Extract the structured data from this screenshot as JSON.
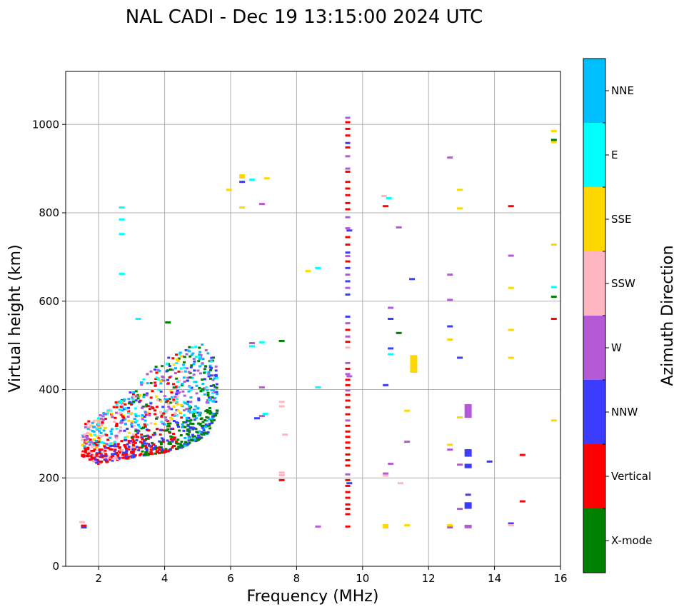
{
  "chart_data": {
    "type": "scatter",
    "title": "NAL CADI - Dec 19 13:15:00 2024 UTC",
    "xlabel": "Frequency (MHz)",
    "ylabel": "Virtual height (km)",
    "xlim": [
      1,
      16
    ],
    "ylim": [
      0,
      1120
    ],
    "xticks": [
      2,
      4,
      6,
      8,
      10,
      12,
      14,
      16
    ],
    "yticks": [
      0,
      200,
      400,
      600,
      800,
      1000
    ],
    "grid": true,
    "colorbar": {
      "label": "Azimuth Direction",
      "categories": [
        {
          "name": "X-mode",
          "color": "#008000"
        },
        {
          "name": "Vertical",
          "color": "#ff0000"
        },
        {
          "name": "NNW",
          "color": "#3c3cff"
        },
        {
          "name": "W",
          "color": "#b45ad7"
        },
        {
          "name": "SSW",
          "color": "#ffb6c1"
        },
        {
          "name": "SSE",
          "color": "#ffd700"
        },
        {
          "name": "E",
          "color": "#00ffff"
        },
        {
          "name": "NNE",
          "color": "#00bfff"
        }
      ]
    },
    "cluster": {
      "description": "dense F-layer trace",
      "x_range": [
        1.5,
        5.6
      ],
      "lower_envelope": [
        [
          1.5,
          250
        ],
        [
          2.0,
          232
        ],
        [
          2.5,
          240
        ],
        [
          3.0,
          245
        ],
        [
          3.5,
          252
        ],
        [
          4.0,
          258
        ],
        [
          4.5,
          268
        ],
        [
          5.0,
          285
        ],
        [
          5.3,
          300
        ],
        [
          5.6,
          345
        ]
      ],
      "upper_envelope": [
        [
          1.5,
          320
        ],
        [
          2.0,
          345
        ],
        [
          2.5,
          370
        ],
        [
          3.0,
          400
        ],
        [
          3.5,
          440
        ],
        [
          4.0,
          470
        ],
        [
          4.5,
          490
        ],
        [
          5.0,
          505
        ],
        [
          5.3,
          500
        ],
        [
          5.6,
          470
        ]
      ]
    },
    "points": [
      {
        "x": 1.5,
        "y": 100,
        "c": "SSW"
      },
      {
        "x": 1.55,
        "y": 92,
        "c": "Vertical"
      },
      {
        "x": 1.55,
        "y": 88,
        "c": "NNW"
      },
      {
        "x": 2.7,
        "y": 812,
        "c": "E"
      },
      {
        "x": 2.7,
        "y": 785,
        "c": "E"
      },
      {
        "x": 2.7,
        "y": 752,
        "c": "E"
      },
      {
        "x": 2.7,
        "y": 662,
        "c": "E"
      },
      {
        "x": 3.2,
        "y": 560,
        "c": "E"
      },
      {
        "x": 4.1,
        "y": 552,
        "c": "X-mode"
      },
      {
        "x": 6.35,
        "y": 885,
        "c": "SSE"
      },
      {
        "x": 6.35,
        "y": 880,
        "c": "SSE"
      },
      {
        "x": 6.35,
        "y": 870,
        "c": "NNW"
      },
      {
        "x": 6.35,
        "y": 812,
        "c": "SSE"
      },
      {
        "x": 6.65,
        "y": 875,
        "c": "E"
      },
      {
        "x": 7.1,
        "y": 878,
        "c": "SSE"
      },
      {
        "x": 6.95,
        "y": 820,
        "c": "W"
      },
      {
        "x": 5.95,
        "y": 852,
        "c": "SSE"
      },
      {
        "x": 6.65,
        "y": 505,
        "c": "W"
      },
      {
        "x": 6.65,
        "y": 498,
        "c": "E"
      },
      {
        "x": 6.95,
        "y": 507,
        "c": "E"
      },
      {
        "x": 7.55,
        "y": 510,
        "c": "X-mode"
      },
      {
        "x": 6.95,
        "y": 405,
        "c": "W"
      },
      {
        "x": 6.8,
        "y": 335,
        "c": "NNW"
      },
      {
        "x": 6.95,
        "y": 340,
        "c": "W"
      },
      {
        "x": 7.05,
        "y": 345,
        "c": "E"
      },
      {
        "x": 7.55,
        "y": 372,
        "c": "SSW"
      },
      {
        "x": 7.55,
        "y": 362,
        "c": "SSW"
      },
      {
        "x": 7.65,
        "y": 298,
        "c": "SSW"
      },
      {
        "x": 7.55,
        "y": 212,
        "c": "SSW"
      },
      {
        "x": 7.55,
        "y": 206,
        "c": "SSW"
      },
      {
        "x": 7.55,
        "y": 195,
        "c": "Vertical"
      },
      {
        "x": 8.35,
        "y": 668,
        "c": "SSE"
      },
      {
        "x": 8.65,
        "y": 675,
        "c": "E"
      },
      {
        "x": 8.65,
        "y": 405,
        "c": "E"
      },
      {
        "x": 8.65,
        "y": 90,
        "c": "W"
      },
      {
        "x": 9.6,
        "y": 760,
        "c": "NNW"
      },
      {
        "x": 9.6,
        "y": 430,
        "c": "W"
      },
      {
        "x": 9.6,
        "y": 188,
        "c": "NNW"
      },
      {
        "x": 10.65,
        "y": 838,
        "c": "SSW"
      },
      {
        "x": 10.8,
        "y": 833,
        "c": "E"
      },
      {
        "x": 10.7,
        "y": 815,
        "c": "Vertical"
      },
      {
        "x": 11.1,
        "y": 767,
        "c": "W"
      },
      {
        "x": 11.5,
        "y": 650,
        "c": "NNW"
      },
      {
        "x": 10.85,
        "y": 585,
        "c": "W"
      },
      {
        "x": 10.85,
        "y": 560,
        "c": "NNW"
      },
      {
        "x": 11.1,
        "y": 528,
        "c": "X-mode"
      },
      {
        "x": 10.85,
        "y": 493,
        "c": "NNW"
      },
      {
        "x": 10.85,
        "y": 480,
        "c": "E"
      },
      {
        "x": 10.7,
        "y": 410,
        "c": "NNW"
      },
      {
        "x": 11.35,
        "y": 352,
        "c": "SSE"
      },
      {
        "x": 11.35,
        "y": 282,
        "c": "W"
      },
      {
        "x": 10.85,
        "y": 232,
        "c": "W"
      },
      {
        "x": 10.7,
        "y": 210,
        "c": "W"
      },
      {
        "x": 10.7,
        "y": 205,
        "c": "SSW"
      },
      {
        "x": 11.15,
        "y": 188,
        "c": "SSW"
      },
      {
        "x": 10.7,
        "y": 93,
        "c": "SSE"
      },
      {
        "x": 10.7,
        "y": 88,
        "c": "SSE"
      },
      {
        "x": 11.35,
        "y": 93,
        "c": "SSE"
      },
      {
        "x": 12.65,
        "y": 925,
        "c": "W"
      },
      {
        "x": 12.95,
        "y": 852,
        "c": "SSE"
      },
      {
        "x": 12.95,
        "y": 810,
        "c": "SSE"
      },
      {
        "x": 12.65,
        "y": 660,
        "c": "W"
      },
      {
        "x": 12.65,
        "y": 603,
        "c": "W"
      },
      {
        "x": 12.65,
        "y": 543,
        "c": "NNW"
      },
      {
        "x": 12.65,
        "y": 513,
        "c": "SSE"
      },
      {
        "x": 12.95,
        "y": 472,
        "c": "NNW"
      },
      {
        "x": 12.95,
        "y": 337,
        "c": "SSE"
      },
      {
        "x": 12.65,
        "y": 275,
        "c": "SSE"
      },
      {
        "x": 12.65,
        "y": 264,
        "c": "W"
      },
      {
        "x": 12.95,
        "y": 230,
        "c": "W"
      },
      {
        "x": 13.85,
        "y": 237,
        "c": "NNW"
      },
      {
        "x": 13.2,
        "y": 162,
        "c": "NNW"
      },
      {
        "x": 12.95,
        "y": 130,
        "c": "W"
      },
      {
        "x": 12.65,
        "y": 93,
        "c": "SSE"
      },
      {
        "x": 12.65,
        "y": 88,
        "c": "W"
      },
      {
        "x": 14.5,
        "y": 815,
        "c": "Vertical"
      },
      {
        "x": 14.5,
        "y": 703,
        "c": "W"
      },
      {
        "x": 14.5,
        "y": 630,
        "c": "SSE"
      },
      {
        "x": 14.5,
        "y": 535,
        "c": "SSE"
      },
      {
        "x": 14.5,
        "y": 472,
        "c": "SSE"
      },
      {
        "x": 14.85,
        "y": 252,
        "c": "Vertical"
      },
      {
        "x": 14.85,
        "y": 147,
        "c": "Vertical"
      },
      {
        "x": 14.5,
        "y": 97,
        "c": "NNW"
      },
      {
        "x": 14.5,
        "y": 93,
        "c": "SSW"
      },
      {
        "x": 15.8,
        "y": 985,
        "c": "SSE"
      },
      {
        "x": 15.8,
        "y": 965,
        "c": "X-mode"
      },
      {
        "x": 15.8,
        "y": 960,
        "c": "SSE"
      },
      {
        "x": 15.8,
        "y": 728,
        "c": "SSE"
      },
      {
        "x": 15.8,
        "y": 632,
        "c": "E"
      },
      {
        "x": 15.8,
        "y": 610,
        "c": "X-mode"
      },
      {
        "x": 15.8,
        "y": 560,
        "c": "Vertical"
      },
      {
        "x": 15.8,
        "y": 330,
        "c": "SSE"
      }
    ],
    "blocks": [
      {
        "x": 11.55,
        "y0": 438,
        "y1": 478,
        "c": "SSE"
      },
      {
        "x": 13.2,
        "y0": 336,
        "y1": 367,
        "c": "W"
      },
      {
        "x": 13.2,
        "y0": 248,
        "y1": 265,
        "c": "NNW"
      },
      {
        "x": 13.2,
        "y0": 222,
        "y1": 232,
        "c": "NNW"
      },
      {
        "x": 13.2,
        "y0": 130,
        "y1": 145,
        "c": "NNW"
      },
      {
        "x": 13.2,
        "y0": 86,
        "y1": 94,
        "c": "W"
      }
    ],
    "column": {
      "x": 9.55,
      "points": [
        {
          "y": 1015,
          "c": "W"
        },
        {
          "y": 1005,
          "c": "Vertical"
        },
        {
          "y": 990,
          "c": "Vertical"
        },
        {
          "y": 975,
          "c": "Vertical"
        },
        {
          "y": 958,
          "c": "NNW"
        },
        {
          "y": 948,
          "c": "Vertical"
        },
        {
          "y": 928,
          "c": "W"
        },
        {
          "y": 900,
          "c": "W"
        },
        {
          "y": 893,
          "c": "Vertical"
        },
        {
          "y": 870,
          "c": "Vertical"
        },
        {
          "y": 855,
          "c": "Vertical"
        },
        {
          "y": 840,
          "c": "Vertical"
        },
        {
          "y": 822,
          "c": "Vertical"
        },
        {
          "y": 808,
          "c": "Vertical"
        },
        {
          "y": 790,
          "c": "W"
        },
        {
          "y": 765,
          "c": "W"
        },
        {
          "y": 745,
          "c": "Vertical"
        },
        {
          "y": 728,
          "c": "Vertical"
        },
        {
          "y": 710,
          "c": "NNW"
        },
        {
          "y": 702,
          "c": "W"
        },
        {
          "y": 690,
          "c": "Vertical"
        },
        {
          "y": 675,
          "c": "NNW"
        },
        {
          "y": 660,
          "c": "W"
        },
        {
          "y": 645,
          "c": "NNW"
        },
        {
          "y": 630,
          "c": "W"
        },
        {
          "y": 615,
          "c": "NNW"
        },
        {
          "y": 565,
          "c": "NNW"
        },
        {
          "y": 550,
          "c": "W"
        },
        {
          "y": 535,
          "c": "Vertical"
        },
        {
          "y": 520,
          "c": "W"
        },
        {
          "y": 508,
          "c": "Vertical"
        },
        {
          "y": 495,
          "c": "SSW"
        },
        {
          "y": 460,
          "c": "W"
        },
        {
          "y": 447,
          "c": "Vertical"
        },
        {
          "y": 435,
          "c": "W"
        },
        {
          "y": 422,
          "c": "Vertical"
        },
        {
          "y": 410,
          "c": "Vertical"
        },
        {
          "y": 398,
          "c": "W"
        },
        {
          "y": 388,
          "c": "Vertical"
        },
        {
          "y": 375,
          "c": "Vertical"
        },
        {
          "y": 360,
          "c": "Vertical"
        },
        {
          "y": 344,
          "c": "Vertical"
        },
        {
          "y": 330,
          "c": "W"
        },
        {
          "y": 318,
          "c": "Vertical"
        },
        {
          "y": 305,
          "c": "Vertical"
        },
        {
          "y": 293,
          "c": "Vertical"
        },
        {
          "y": 280,
          "c": "Vertical"
        },
        {
          "y": 268,
          "c": "Vertical"
        },
        {
          "y": 253,
          "c": "Vertical"
        },
        {
          "y": 240,
          "c": "Vertical"
        },
        {
          "y": 228,
          "c": "Vertical"
        },
        {
          "y": 208,
          "c": "W"
        },
        {
          "y": 195,
          "c": "Vertical"
        },
        {
          "y": 182,
          "c": "Vertical"
        },
        {
          "y": 168,
          "c": "Vertical"
        },
        {
          "y": 155,
          "c": "Vertical"
        },
        {
          "y": 140,
          "c": "Vertical"
        },
        {
          "y": 130,
          "c": "Vertical"
        },
        {
          "y": 118,
          "c": "Vertical"
        },
        {
          "y": 90,
          "c": "Vertical"
        }
      ]
    }
  }
}
